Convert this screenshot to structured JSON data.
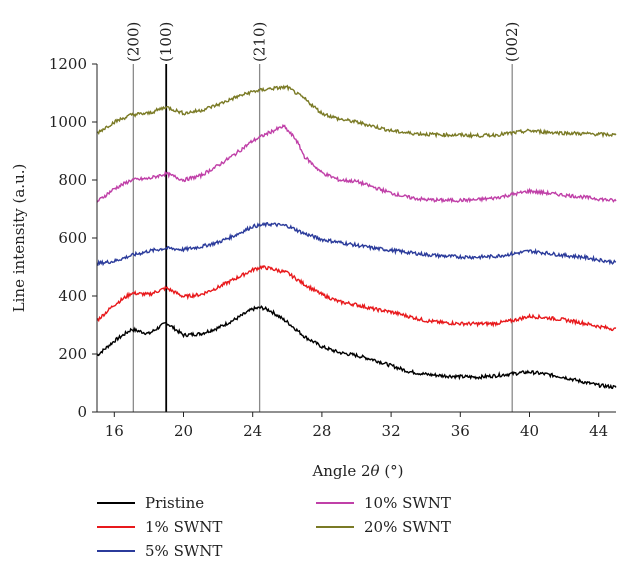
{
  "chart_data": {
    "type": "line",
    "xlabel": "Angle 2θ (°)",
    "ylabel": "Line intensity (a.u.)",
    "xlim": [
      15,
      45
    ],
    "ylim": [
      0,
      1200
    ],
    "xticks": [
      16,
      20,
      24,
      28,
      32,
      36,
      40,
      44
    ],
    "yticks": [
      0,
      200,
      400,
      600,
      800,
      1000,
      1200
    ],
    "grid": false,
    "legend_placement": "bottom",
    "reference_lines": [
      {
        "label": "(200)",
        "x": 17.1,
        "color": "#8a8a8a"
      },
      {
        "label": "(100)",
        "x": 19.0,
        "color": "#000000"
      },
      {
        "label": "(210)",
        "x": 24.4,
        "color": "#8a8a8a"
      },
      {
        "label": "(002)",
        "x": 39.0,
        "color": "#8a8a8a"
      }
    ],
    "series": [
      {
        "name": "Pristine",
        "color": "#000000",
        "points": [
          [
            15,
            195
          ],
          [
            16,
            245
          ],
          [
            17,
            285
          ],
          [
            18,
            270
          ],
          [
            19,
            308
          ],
          [
            20,
            265
          ],
          [
            21,
            270
          ],
          [
            22,
            290
          ],
          [
            23,
            320
          ],
          [
            24,
            355
          ],
          [
            24.5,
            360
          ],
          [
            25,
            350
          ],
          [
            26,
            310
          ],
          [
            27,
            260
          ],
          [
            28,
            225
          ],
          [
            29,
            205
          ],
          [
            30,
            195
          ],
          [
            31,
            180
          ],
          [
            32,
            160
          ],
          [
            33,
            140
          ],
          [
            34,
            130
          ],
          [
            35,
            125
          ],
          [
            36,
            122
          ],
          [
            37,
            120
          ],
          [
            38,
            125
          ],
          [
            39,
            132
          ],
          [
            40,
            138
          ],
          [
            41,
            130
          ],
          [
            42,
            120
          ],
          [
            43,
            105
          ],
          [
            44,
            92
          ],
          [
            45,
            85
          ]
        ]
      },
      {
        "name": "1% SWNT",
        "color": "#e8191c",
        "points": [
          [
            15,
            315
          ],
          [
            16,
            370
          ],
          [
            17,
            410
          ],
          [
            18,
            405
          ],
          [
            19,
            428
          ],
          [
            20,
            398
          ],
          [
            21,
            405
          ],
          [
            22,
            430
          ],
          [
            23,
            460
          ],
          [
            24,
            490
          ],
          [
            24.5,
            500
          ],
          [
            25,
            495
          ],
          [
            26,
            480
          ],
          [
            27,
            440
          ],
          [
            28,
            405
          ],
          [
            29,
            380
          ],
          [
            30,
            370
          ],
          [
            31,
            355
          ],
          [
            32,
            345
          ],
          [
            33,
            330
          ],
          [
            34,
            315
          ],
          [
            35,
            308
          ],
          [
            36,
            305
          ],
          [
            37,
            304
          ],
          [
            38,
            305
          ],
          [
            39,
            315
          ],
          [
            40,
            330
          ],
          [
            41,
            325
          ],
          [
            42,
            318
          ],
          [
            43,
            308
          ],
          [
            44,
            295
          ],
          [
            45,
            285
          ]
        ]
      },
      {
        "name": "5% SWNT",
        "color": "#2b3b9b",
        "points": [
          [
            15,
            512
          ],
          [
            16,
            520
          ],
          [
            17,
            540
          ],
          [
            18,
            555
          ],
          [
            19,
            565
          ],
          [
            20,
            560
          ],
          [
            21,
            570
          ],
          [
            22,
            585
          ],
          [
            23,
            610
          ],
          [
            24,
            640
          ],
          [
            25,
            648
          ],
          [
            26,
            642
          ],
          [
            27,
            615
          ],
          [
            28,
            595
          ],
          [
            29,
            585
          ],
          [
            30,
            575
          ],
          [
            31,
            565
          ],
          [
            32,
            558
          ],
          [
            33,
            550
          ],
          [
            34,
            543
          ],
          [
            35,
            538
          ],
          [
            36,
            535
          ],
          [
            37,
            534
          ],
          [
            38,
            537
          ],
          [
            39,
            545
          ],
          [
            40,
            555
          ],
          [
            41,
            548
          ],
          [
            42,
            540
          ],
          [
            43,
            535
          ],
          [
            44,
            525
          ],
          [
            45,
            515
          ]
        ]
      },
      {
        "name": "10% SWNT",
        "color": "#c040a8",
        "points": [
          [
            15,
            725
          ],
          [
            16,
            770
          ],
          [
            17,
            800
          ],
          [
            18,
            805
          ],
          [
            19,
            822
          ],
          [
            20,
            800
          ],
          [
            21,
            815
          ],
          [
            22,
            850
          ],
          [
            23,
            890
          ],
          [
            24,
            935
          ],
          [
            25,
            965
          ],
          [
            25.8,
            985
          ],
          [
            26.5,
            940
          ],
          [
            27,
            880
          ],
          [
            28,
            825
          ],
          [
            29,
            800
          ],
          [
            30,
            795
          ],
          [
            31,
            775
          ],
          [
            32,
            755
          ],
          [
            33,
            740
          ],
          [
            34,
            732
          ],
          [
            35,
            730
          ],
          [
            36,
            730
          ],
          [
            37,
            732
          ],
          [
            38,
            738
          ],
          [
            39,
            750
          ],
          [
            40,
            762
          ],
          [
            41,
            755
          ],
          [
            42,
            748
          ],
          [
            43,
            742
          ],
          [
            44,
            735
          ],
          [
            45,
            728
          ]
        ]
      },
      {
        "name": "20% SWNT",
        "color": "#7a7a25",
        "points": [
          [
            15,
            962
          ],
          [
            16,
            1000
          ],
          [
            17,
            1025
          ],
          [
            18,
            1030
          ],
          [
            19,
            1052
          ],
          [
            20,
            1030
          ],
          [
            21,
            1040
          ],
          [
            22,
            1060
          ],
          [
            23,
            1085
          ],
          [
            24,
            1105
          ],
          [
            25,
            1115
          ],
          [
            26,
            1120
          ],
          [
            27,
            1080
          ],
          [
            28,
            1030
          ],
          [
            29,
            1010
          ],
          [
            30,
            1000
          ],
          [
            31,
            985
          ],
          [
            32,
            970
          ],
          [
            33,
            962
          ],
          [
            34,
            958
          ],
          [
            35,
            956
          ],
          [
            36,
            955
          ],
          [
            37,
            953
          ],
          [
            38,
            955
          ],
          [
            39,
            962
          ],
          [
            40,
            970
          ],
          [
            41,
            965
          ],
          [
            42,
            962
          ],
          [
            43,
            960
          ],
          [
            44,
            958
          ],
          [
            45,
            955
          ]
        ]
      }
    ]
  }
}
